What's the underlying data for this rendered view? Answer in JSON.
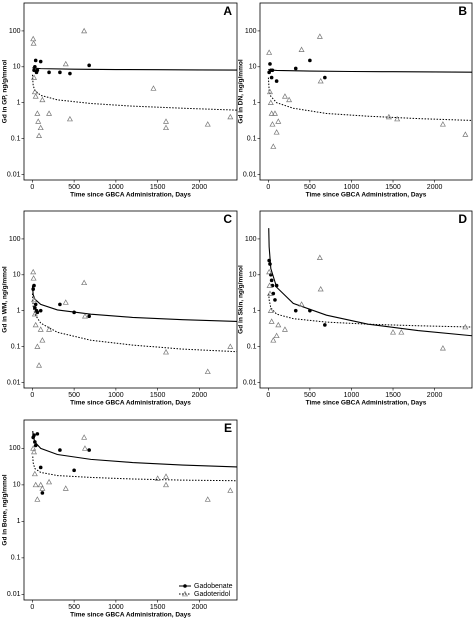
{
  "chart_data": [
    {
      "type": "scatter",
      "label": "A",
      "y_label": "Gd in GP, ng/g/mmol",
      "x_label": "Time since GBCA Administration, Days",
      "log_y": true,
      "xlim": [
        -100,
        2450
      ],
      "ylim": [
        0.007,
        600
      ],
      "xticks": [
        0,
        500,
        1000,
        1500,
        2000
      ],
      "yticks": [
        0.01,
        0.1,
        1,
        10,
        100
      ],
      "series": [
        {
          "color": "#000000",
          "marker": "circle",
          "line_style": "solid",
          "x": [
            20,
            30,
            40,
            50,
            60,
            100,
            200,
            330,
            450,
            680
          ],
          "values": [
            8,
            10,
            15,
            7,
            8,
            14,
            7,
            7,
            6.5,
            11
          ],
          "fit_x": [
            1,
            10,
            100,
            500,
            1000,
            1500,
            2000,
            2450
          ],
          "fit_values": [
            9.5,
            9.2,
            8.9,
            8.6,
            8.4,
            8.3,
            8.2,
            8.1
          ]
        },
        {
          "color": "#777777",
          "marker": "triangle",
          "line_style": "dotted",
          "x": [
            10,
            15,
            20,
            30,
            40,
            60,
            70,
            80,
            100,
            120,
            200,
            400,
            450,
            620,
            1450,
            1600,
            1600,
            2100,
            2370
          ],
          "values": [
            60,
            45,
            5,
            2,
            1.5,
            0.5,
            0.3,
            0.12,
            0.2,
            1.2,
            0.5,
            12,
            0.35,
            100,
            2.5,
            0.3,
            0.2,
            0.25,
            0.4
          ],
          "fit_x": [
            1,
            10,
            30,
            100,
            300,
            700,
            1200,
            1800,
            2450
          ],
          "fit_values": [
            6,
            3,
            2.2,
            1.6,
            1.2,
            0.95,
            0.8,
            0.7,
            0.62
          ]
        }
      ]
    },
    {
      "type": "scatter",
      "label": "B",
      "y_label": "Gd in DN, ng/g/mmol",
      "x_label": "Time since GBCA Administration, Days",
      "log_y": true,
      "xlim": [
        -100,
        2450
      ],
      "ylim": [
        0.007,
        600
      ],
      "xticks": [
        0,
        500,
        1000,
        1500,
        2000
      ],
      "yticks": [
        0.01,
        0.1,
        1,
        10,
        100
      ],
      "series": [
        {
          "color": "#000000",
          "marker": "circle",
          "line_style": "solid",
          "x": [
            10,
            20,
            30,
            40,
            50,
            100,
            330,
            500,
            680
          ],
          "values": [
            7,
            12,
            8,
            5,
            8,
            4,
            9,
            15,
            5
          ],
          "fit_x": [
            1,
            10,
            100,
            500,
            1000,
            1500,
            2000,
            2450
          ],
          "fit_values": [
            8.5,
            8.2,
            7.9,
            7.6,
            7.4,
            7.3,
            7.2,
            7.1
          ]
        },
        {
          "color": "#777777",
          "marker": "triangle",
          "line_style": "dotted",
          "x": [
            10,
            20,
            30,
            40,
            50,
            60,
            80,
            100,
            120,
            200,
            250,
            400,
            620,
            630,
            1450,
            1550,
            2100,
            2370
          ],
          "values": [
            25,
            2,
            1,
            0.5,
            0.25,
            0.06,
            0.5,
            0.15,
            0.3,
            1.5,
            1.2,
            30,
            70,
            4,
            0.4,
            0.35,
            0.25,
            0.13
          ],
          "fit_x": [
            1,
            10,
            30,
            100,
            300,
            700,
            1200,
            1800,
            2450
          ],
          "fit_values": [
            5,
            2.2,
            1.5,
            1,
            0.7,
            0.5,
            0.42,
            0.36,
            0.32
          ]
        }
      ]
    },
    {
      "type": "scatter",
      "label": "C",
      "y_label": "Gd in WM, ng/g/mmol",
      "x_label": "Time since GBCA Administration, Days",
      "log_y": true,
      "xlim": [
        -100,
        2450
      ],
      "ylim": [
        0.007,
        600
      ],
      "xticks": [
        0,
        500,
        1000,
        1500,
        2000
      ],
      "yticks": [
        0.01,
        0.1,
        1,
        10,
        100
      ],
      "series": [
        {
          "color": "#000000",
          "marker": "circle",
          "line_style": "solid",
          "x": [
            10,
            20,
            30,
            40,
            50,
            60,
            100,
            330,
            500,
            680
          ],
          "values": [
            4,
            5,
            1.2,
            1.5,
            1,
            0.9,
            1,
            1.5,
            0.9,
            0.7
          ],
          "fit_x": [
            1,
            10,
            30,
            100,
            300,
            700,
            1200,
            1800,
            2450
          ],
          "fit_values": [
            5,
            2.8,
            2.1,
            1.5,
            1.05,
            0.8,
            0.65,
            0.56,
            0.5
          ]
        },
        {
          "color": "#777777",
          "marker": "triangle",
          "line_style": "dotted",
          "x": [
            10,
            15,
            20,
            30,
            40,
            60,
            80,
            100,
            120,
            200,
            400,
            620,
            630,
            1600,
            2100,
            2370
          ],
          "values": [
            12,
            8,
            2,
            0.8,
            0.4,
            0.1,
            0.03,
            0.3,
            0.15,
            0.3,
            1.7,
            6,
            0.7,
            0.07,
            0.02,
            0.1
          ],
          "fit_x": [
            1,
            10,
            30,
            100,
            300,
            700,
            1200,
            1800,
            2450
          ],
          "fit_values": [
            3,
            1.3,
            0.8,
            0.45,
            0.25,
            0.15,
            0.11,
            0.085,
            0.072
          ]
        }
      ]
    },
    {
      "type": "scatter",
      "label": "D",
      "y_label": "Gd in Skin, ng/g/mmol",
      "x_label": "Time since GBCA Administration, Days",
      "log_y": true,
      "xlim": [
        -100,
        2450
      ],
      "ylim": [
        0.007,
        600
      ],
      "xticks": [
        0,
        500,
        1000,
        1500,
        2000
      ],
      "yticks": [
        0.01,
        0.1,
        1,
        10,
        100
      ],
      "series": [
        {
          "color": "#000000",
          "marker": "circle",
          "line_style": "solid",
          "x": [
            10,
            20,
            30,
            40,
            50,
            60,
            80,
            100,
            330,
            500,
            680
          ],
          "values": [
            25,
            20,
            10,
            7,
            5,
            3,
            2,
            5,
            1,
            1,
            0.4
          ],
          "fit_x": [
            5,
            10,
            30,
            100,
            300,
            700,
            1200,
            1800,
            2450
          ],
          "fit_values": [
            200,
            60,
            15,
            4.5,
            1.6,
            0.75,
            0.42,
            0.28,
            0.2
          ]
        },
        {
          "color": "#777777",
          "marker": "triangle",
          "line_style": "dotted",
          "x": [
            10,
            15,
            20,
            30,
            40,
            60,
            100,
            120,
            200,
            400,
            620,
            630,
            1500,
            1600,
            2100,
            2370
          ],
          "values": [
            12,
            5,
            3,
            1,
            0.5,
            0.15,
            0.2,
            0.4,
            0.3,
            1.5,
            30,
            4,
            0.25,
            0.25,
            0.09,
            0.35
          ],
          "fit_x": [
            5,
            10,
            30,
            100,
            300,
            700,
            1200,
            1800,
            2450
          ],
          "fit_values": [
            3,
            2,
            1.2,
            0.8,
            0.6,
            0.48,
            0.42,
            0.38,
            0.35
          ]
        }
      ]
    },
    {
      "type": "scatter",
      "label": "E",
      "y_label": "Gd in Bone, ng/g/mmol",
      "x_label": "Time since GBCA Administration, Days",
      "log_y": true,
      "xlim": [
        -100,
        2450
      ],
      "ylim": [
        0.007,
        600
      ],
      "xticks": [
        0,
        500,
        1000,
        1500,
        2000
      ],
      "yticks": [
        0.01,
        0.1,
        1,
        10,
        100
      ],
      "legend": "bottom-right",
      "series": [
        {
          "name": "Gadobenate",
          "color": "#000000",
          "marker": "circle",
          "line_style": "solid",
          "x": [
            10,
            20,
            30,
            40,
            60,
            100,
            120,
            330,
            500,
            680
          ],
          "values": [
            200,
            230,
            150,
            120,
            250,
            30,
            6,
            90,
            25,
            90
          ],
          "fit_x": [
            5,
            10,
            30,
            100,
            300,
            700,
            1200,
            1800,
            2450
          ],
          "fit_values": [
            300,
            220,
            150,
            100,
            68,
            50,
            41,
            35,
            31
          ]
        },
        {
          "name": "Gadoteridol",
          "color": "#777777",
          "marker": "triangle",
          "line_style": "dotted",
          "x": [
            10,
            20,
            30,
            40,
            60,
            100,
            120,
            200,
            400,
            620,
            630,
            1500,
            1600,
            1600,
            2100,
            2370
          ],
          "values": [
            100,
            80,
            20,
            10,
            4,
            10,
            8,
            12,
            8,
            200,
            100,
            15,
            10,
            17,
            4,
            7
          ],
          "fit_x": [
            5,
            10,
            30,
            100,
            300,
            700,
            1200,
            1800,
            2450
          ],
          "fit_values": [
            60,
            40,
            28,
            22,
            18,
            16,
            14.5,
            13.5,
            13
          ]
        }
      ]
    }
  ]
}
